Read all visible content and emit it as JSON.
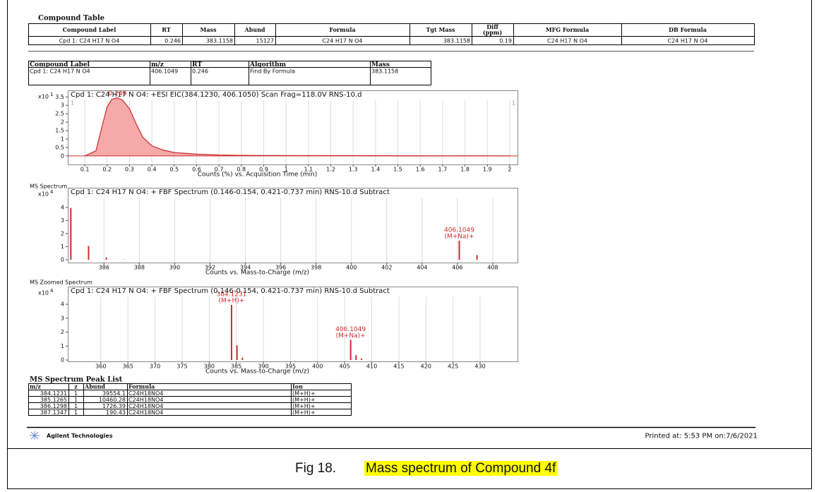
{
  "report": {
    "compound_table": {
      "title": "Compound Table",
      "headers": [
        "Compound Label",
        "RT",
        "Mass",
        "Abund",
        "Formula",
        "Tgt Mass",
        [
          "Diff",
          "(ppm)"
        ],
        "MFG Formula",
        "DB Formula"
      ],
      "rows": [
        [
          "Cpd 1: C24 H17 N O4",
          0.246,
          383.1158,
          15127,
          "C24 H17 N O4",
          383.1158,
          0.19,
          "C24 H17 N O4",
          "C24 H17 N O4"
        ]
      ]
    },
    "search_table": {
      "headers": [
        "Compound Label",
        "m/z",
        "RT",
        "Algorithm",
        "Mass"
      ],
      "rows": [
        [
          "Cpd 1: C24 H17 N O4",
          406.1049,
          0.246,
          "Find By Formula",
          383.1158
        ]
      ]
    },
    "section_labels": [
      "MS Spectrum",
      "MS Zoomed Spectrum"
    ],
    "peak_list": {
      "title": "MS Spectrum Peak List",
      "headers": [
        "m/z",
        "z",
        "Abund",
        "Formula",
        "Ion"
      ],
      "rows": [
        [
          384.1231,
          1,
          39554.1,
          "C24H18NO4",
          "(M+H)+"
        ],
        [
          385.1265,
          1,
          10460.28,
          "C24H18NO4",
          "(M+H)+"
        ],
        [
          386.1298,
          1,
          1726.39,
          "C24H18NO4",
          "(M+H)+"
        ],
        [
          387.1347,
          1,
          190.43,
          "C24H18NO4",
          "(M+H)+"
        ]
      ]
    },
    "footer": {
      "company": "Agilent Technologies",
      "printed": "Printed at: 5:53 PM on:7/6/2021"
    },
    "caption": {
      "label": "Fig 18.",
      "text": "Mass spectrum of Compound 4f"
    }
  },
  "chart_data": [
    {
      "type": "area",
      "title": "Cpd 1: C24 H17 N O4: +ESI EIC(384.1230, 406.1050) Scan Frag=118.0V RNS-10.d",
      "x_label": "Counts (%) vs. Acquisition Time (min)",
      "y_multiplier": {
        "base": "x10",
        "exponent": 1
      },
      "corner_marks": [
        "1",
        "1"
      ],
      "x": [
        0.1,
        0.15,
        0.18,
        0.2,
        0.22,
        0.246,
        0.27,
        0.3,
        0.33,
        0.36,
        0.4,
        0.45,
        0.5,
        0.6,
        0.7,
        0.8,
        1.0,
        1.5,
        2.0
      ],
      "values": [
        0,
        0.3,
        1.9,
        2.9,
        3.35,
        3.45,
        3.3,
        2.8,
        1.9,
        1.1,
        0.6,
        0.35,
        0.2,
        0.1,
        0.05,
        0.03,
        0.02,
        0.01,
        0
      ],
      "peak_labels": [
        null,
        null,
        null,
        null,
        null,
        [
          "0.246"
        ],
        null,
        null,
        null,
        null,
        null,
        null,
        null,
        null,
        null,
        null,
        null,
        null,
        null
      ],
      "color": "#cc2b2b",
      "fill": "#f5a9a9",
      "xlim": [
        0.024,
        2.035
      ],
      "xticks": [
        0.1,
        0.2,
        0.3,
        0.4,
        0.5,
        0.6,
        0.7,
        0.8,
        0.9,
        1,
        1.1,
        1.2,
        1.3,
        1.4,
        1.5,
        1.6,
        1.7,
        1.8,
        1.9,
        2
      ],
      "ylim": [
        -0.51,
        3.89
      ],
      "yticks": [
        0,
        0.5,
        1,
        1.5,
        2,
        2.5,
        3,
        3.5
      ],
      "grid": "x"
    },
    {
      "type": "stem",
      "title": "Cpd 1: C24 H17 N O4: + FBF Spectrum (0.146-0.154, 0.421-0.737 min) RNS-10.d  Subtract",
      "x_label": "Counts vs. Mass-to-Charge (m/z)",
      "y_multiplier": {
        "base": "x10",
        "exponent": 4
      },
      "x": [
        384.1231,
        385.1265,
        386.1298,
        387.1347,
        406.1049,
        407.108
      ],
      "values": [
        3.955,
        1.046,
        0.173,
        0.019,
        1.45,
        0.35
      ],
      "peak_labels": [
        null,
        null,
        null,
        null,
        [
          "406.1049",
          "(M+Na)+"
        ],
        null
      ],
      "color": "#cc2b2b",
      "xlim": [
        383.95,
        409.4
      ],
      "xticks": [
        386,
        388,
        390,
        392,
        394,
        396,
        398,
        400,
        402,
        404,
        406,
        408
      ],
      "ylim": [
        -0.22,
        5.5
      ],
      "yticks": [
        0,
        1,
        2,
        3,
        4
      ],
      "grid": "x"
    },
    {
      "type": "stem",
      "title": "Cpd 1: C24 H17 N O4: + FBF Spectrum (0.146-0.154, 0.421-0.737 min) RNS-10.d  Subtract",
      "x_label": "Counts vs. Mass-to-Charge (m/z)",
      "y_multiplier": {
        "base": "x10",
        "exponent": 4
      },
      "x": [
        384.1231,
        385.1265,
        386.1298,
        406.1049,
        407.108,
        408.11
      ],
      "values": [
        3.955,
        1.046,
        0.173,
        1.45,
        0.35,
        0.1
      ],
      "peak_labels": [
        [
          "384.1231",
          "(M+H)+"
        ],
        null,
        null,
        [
          "406.1049",
          "(M+Na)+"
        ],
        null,
        null
      ],
      "color": "#cc2b2b",
      "xlim": [
        353.9,
        436.9
      ],
      "xticks": [
        360,
        365,
        370,
        375,
        380,
        385,
        390,
        395,
        400,
        405,
        410,
        415,
        420,
        425,
        430
      ],
      "ylim": [
        -0.1,
        5.27
      ],
      "yticks": [
        0,
        1,
        2,
        3,
        4
      ],
      "grid": "x"
    }
  ]
}
